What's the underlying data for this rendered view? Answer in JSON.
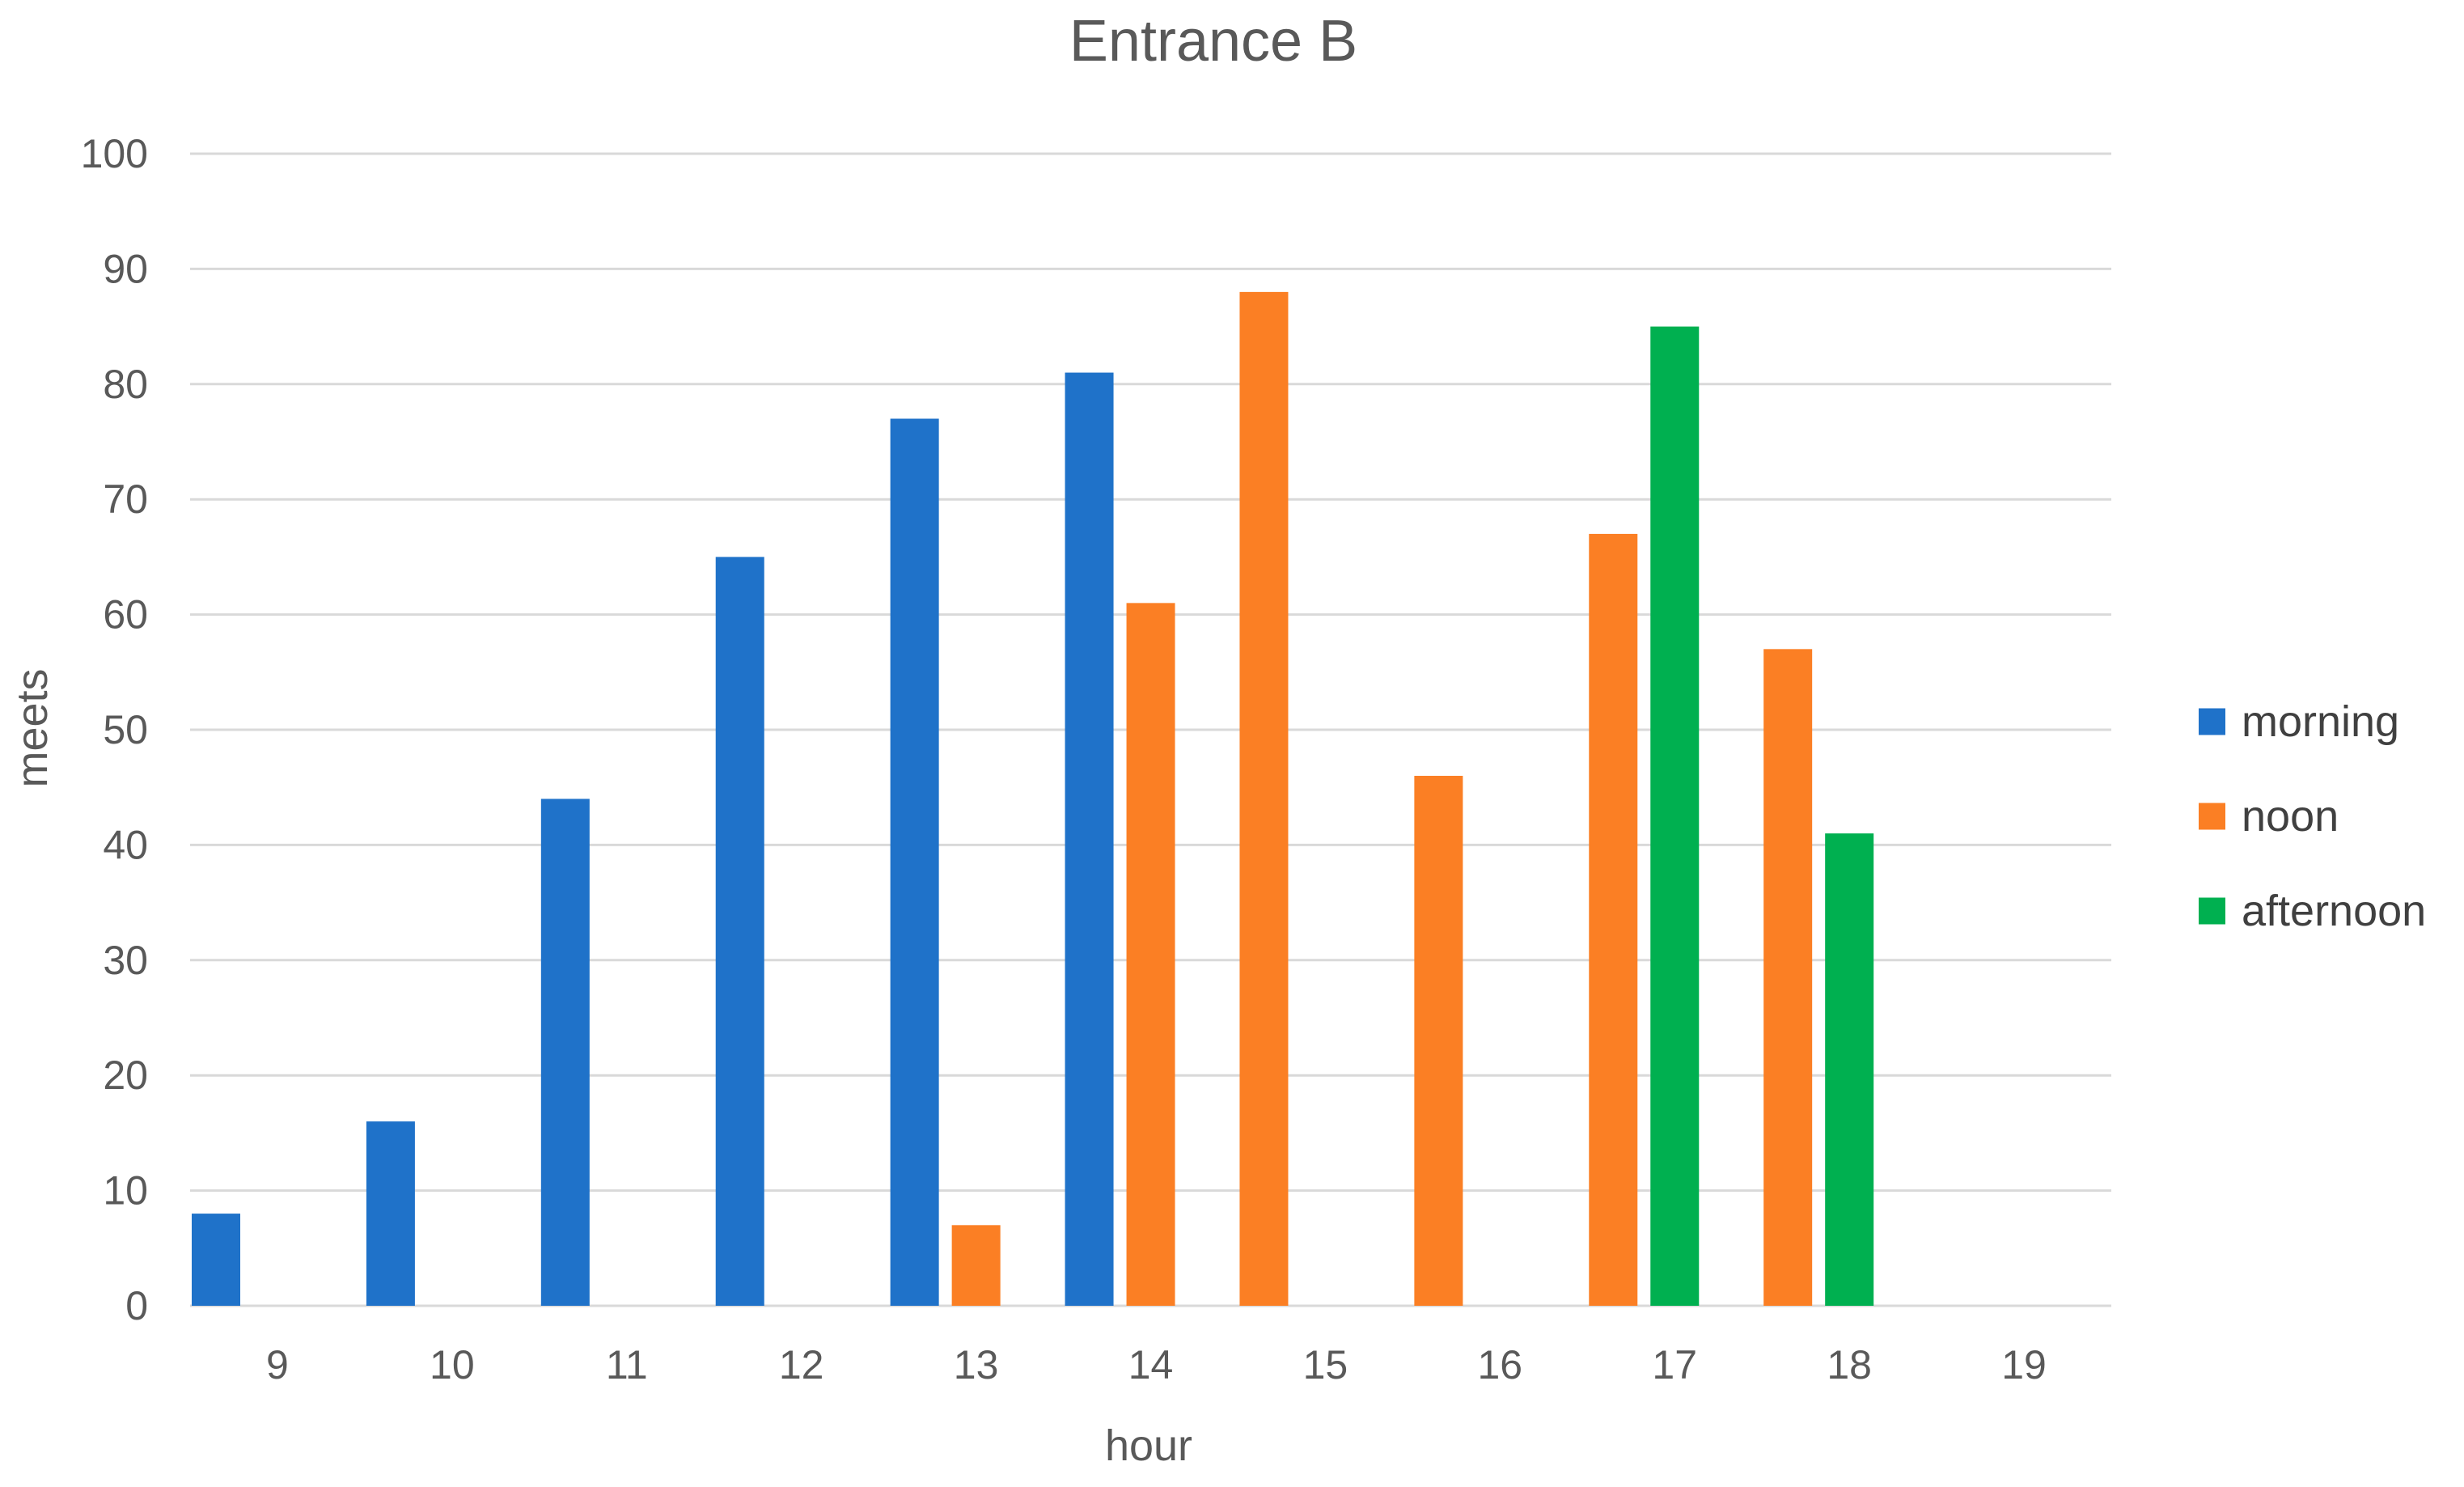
{
  "chart_data": {
    "type": "bar",
    "title": "Entrance B",
    "xlabel": "hour",
    "ylabel": "meets",
    "categories": [
      "9",
      "10",
      "11",
      "12",
      "13",
      "14",
      "15",
      "16",
      "17",
      "18",
      "19"
    ],
    "ylim": [
      0,
      100
    ],
    "yticks": [
      0,
      10,
      20,
      30,
      40,
      50,
      60,
      70,
      80,
      90,
      100
    ],
    "grid": true,
    "legend_position": "right",
    "series": [
      {
        "name": "morning",
        "color": "#1f72c9",
        "values": [
          8,
          16,
          44,
          65,
          77,
          81,
          null,
          null,
          null,
          null,
          null
        ]
      },
      {
        "name": "noon",
        "color": "#fb7f24",
        "values": [
          null,
          null,
          null,
          null,
          7,
          61,
          88,
          46,
          67,
          57,
          null
        ]
      },
      {
        "name": "afternoon",
        "color": "#00b050",
        "values": [
          null,
          null,
          null,
          null,
          null,
          null,
          null,
          null,
          85,
          41,
          null
        ]
      }
    ]
  }
}
